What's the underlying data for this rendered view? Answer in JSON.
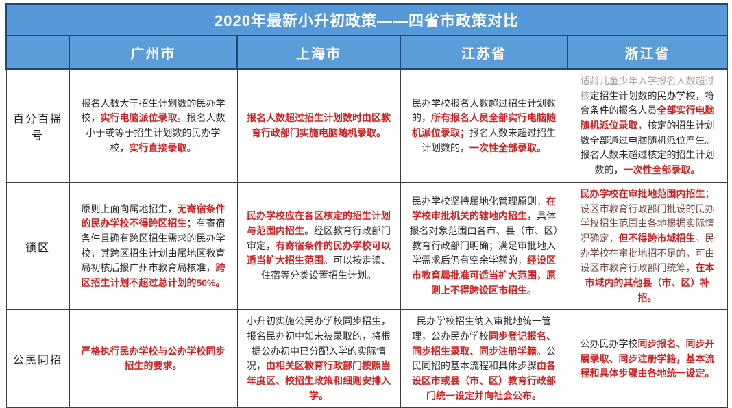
{
  "title": "2020年最新小升初政策——四省市政策对比",
  "columns": [
    "广州市",
    "上海市",
    "江苏省",
    "浙江省"
  ],
  "accent_colors": {
    "header_blue": "#5b9dd9",
    "header_border_navy": "#1f4778",
    "highlight_red": "#cf2121",
    "body_text": "#2d2d2d",
    "faded_gray": "#a9a39e",
    "maroon": "#7b4a42"
  },
  "table": {
    "rows": [
      {
        "label": "百分百摇号",
        "cells": [
          [
            {
              "t": "报名人数大于招生计划数的民办学校，",
              "s": "k"
            },
            {
              "t": "实行电脑派位录取",
              "s": "r"
            },
            {
              "t": "。报名人数小于或等于招生计划数的民办学校，",
              "s": "k"
            },
            {
              "t": "实行直接录取",
              "s": "r"
            },
            {
              "t": "。",
              "s": "k"
            }
          ],
          [
            {
              "t": "报名人数超过招生计划数时由区教育行政部门实施电脑随机录取。",
              "s": "r"
            }
          ],
          [
            {
              "t": "民办学校报名人数超过招生计划数的，",
              "s": "k"
            },
            {
              "t": "所有报名人员全部实行电脑随机派位录取；",
              "s": "r"
            },
            {
              "t": "报名人数未超过招生计划数的，",
              "s": "k"
            },
            {
              "t": "一次性全部录取。",
              "s": "r"
            }
          ],
          [
            {
              "t": "适龄儿童少年入学报名人数超过核",
              "s": "g"
            },
            {
              "t": "定招生计划数的民办学校，符合条件的报名人员",
              "s": "k"
            },
            {
              "t": "全部实行电脑随机派位录取",
              "s": "r"
            },
            {
              "t": "，核定的招生计划数全部通过电脑随机派位产生。报名人数未超过核定的招生计划数的，",
              "s": "k"
            },
            {
              "t": "一次性全部录取。",
              "s": "r"
            }
          ]
        ]
      },
      {
        "label": "锁区",
        "cells": [
          [
            {
              "t": "原则上面向属地招生，",
              "s": "k"
            },
            {
              "t": "无寄宿条件的民办学校不得跨区招生",
              "s": "r"
            },
            {
              "t": "；有寄宿条件且确有跨区招生需求的民办学校，其跨区招生计划由属地区教育局初核后报广州市教育局核准，",
              "s": "k"
            },
            {
              "t": "跨区招生计划不超过总计划的50%。",
              "s": "r"
            }
          ],
          [
            {
              "t": "民办学校应在各区核定的招生计划与范围内招生",
              "s": "r"
            },
            {
              "t": "。经区教育行政部门审定，",
              "s": "k"
            },
            {
              "t": "有寄宿条件的民办学校可以适当扩大招生范围",
              "s": "r"
            },
            {
              "t": "。可以按走读、住宿等分类设置招生计划。",
              "s": "k"
            }
          ],
          [
            {
              "t": "民办学校坚持属地化管理原则，",
              "s": "k"
            },
            {
              "t": "在学校审批机关的辖地内招生",
              "s": "r"
            },
            {
              "t": "，具体报名对象范围由各市、县（市、区）教育行政部门明确；满足审批地入学需求后仍有空余学额的，",
              "s": "k"
            },
            {
              "t": "经设区市教育局批准可适当扩大范围，原则上不得跨设区市招生。",
              "s": "r"
            }
          ],
          [
            {
              "t": "民办学校在审批地范围内招生",
              "s": "r"
            },
            {
              "t": "；设区市教育行政部门批设的民办学校招生范围由各地根据实际情况确定，",
              "s": "m"
            },
            {
              "t": "但不得跨市域招生",
              "s": "r"
            },
            {
              "t": "。民办学校在审批地招不足的，可由设区市教育行政部门统筹，",
              "s": "m"
            },
            {
              "t": "在本市域内的其他县（市、区）补招。",
              "s": "r"
            }
          ]
        ]
      },
      {
        "label": "公民同招",
        "cells": [
          [
            {
              "t": "严格执行民办学校与公办学校同步招生的要求。",
              "s": "r"
            }
          ],
          [
            {
              "t": "小升初实施公民办学校同步招生，报名民办初中如未被录取的，将根据公办初中已分配入学的实际情况，",
              "s": "k"
            },
            {
              "t": "由相关区教育行政部门按照当年度区、校招生政策和细则安排入学。",
              "s": "r"
            }
          ],
          [
            {
              "t": "民办学校招生纳入审批地统一管理，公办民办学校",
              "s": "k"
            },
            {
              "t": "同步登记报名、同步招生录取、同步注册学籍",
              "s": "r"
            },
            {
              "t": "。公民同招的基本流程和具体步骤",
              "s": "k"
            },
            {
              "t": "由各设区市或县（市、区）教育行政部门统一设定并向社会公布。",
              "s": "r"
            }
          ],
          [
            {
              "t": "公办民办学校",
              "s": "k"
            },
            {
              "t": "同步报名、同步开展录取、同步注册学籍，基本流程和具体步骤由各地统一设定。",
              "s": "r"
            }
          ]
        ]
      }
    ]
  },
  "chart_data": {
    "type": "table",
    "title": "2020年最新小升初政策——四省市政策对比",
    "columns": [
      "",
      "广州市",
      "上海市",
      "江苏省",
      "浙江省"
    ],
    "row_labels": [
      "百分百摇号",
      "锁区",
      "公民同招"
    ],
    "rows": [
      [
        "报名人数大于招生计划数的民办学校，实行电脑派位录取。报名人数小于或等于招生计划数的民办学校，实行直接录取。",
        "报名人数超过招生计划数时由区教育行政部门实施电脑随机录取。",
        "民办学校报名人数超过招生计划数的，所有报名人员全部实行电脑随机派位录取；报名人数未超过招生计划数的，一次性全部录取。",
        "适龄儿童少年入学报名人数超过核定招生计划数的民办学校，符合条件的报名人员全部实行电脑随机派位录取，核定的招生计划数全部通过电脑随机派位产生。报名人数未超过核定的招生计划数的，一次性全部录取。"
      ],
      [
        "原则上面向属地招生，无寄宿条件的民办学校不得跨区招生；有寄宿条件且确有跨区招生需求的民办学校，其跨区招生计划由属地区教育局初核后报广州市教育局核准，跨区招生计划不超过总计划的50%。",
        "民办学校应在各区核定的招生计划与范围内招生。经区教育行政部门审定，有寄宿条件的民办学校可以适当扩大招生范围。可以按走读、住宿等分类设置招生计划。",
        "民办学校坚持属地化管理原则，在学校审批机关的辖地内招生，具体报名对象范围由各市、县（市、区）教育行政部门明确；满足审批地入学需求后仍有空余学额的，经设区市教育局批准可适当扩大范围，原则上不得跨设区市招生。",
        "民办学校在审批地范围内招生；设区市教育行政部门批设的民办学校招生范围由各地根据实际情况确定，但不得跨市域招生。民办学校在审批地招不足的，可由设区市教育行政部门统筹，在本市域内的其他县（市、区）补招。"
      ],
      [
        "严格执行民办学校与公办学校同步招生的要求。",
        "小升初实施公民办学校同步招生，报名民办初中如未被录取的，将根据公办初中已分配入学的实际情况，由相关区教育行政部门按照当年度区、校招生政策和细则安排入学。",
        "民办学校招生纳入审批地统一管理，公办民办学校同步登记报名、同步招生录取、同步注册学籍。公民同招的基本流程和具体步骤由各设区市或县（市、区）教育行政部门统一设定并向社会公布。",
        "公办民办学校同步报名、同步开展录取、同步注册学籍，基本流程和具体步骤由各地统一设定。"
      ]
    ]
  }
}
